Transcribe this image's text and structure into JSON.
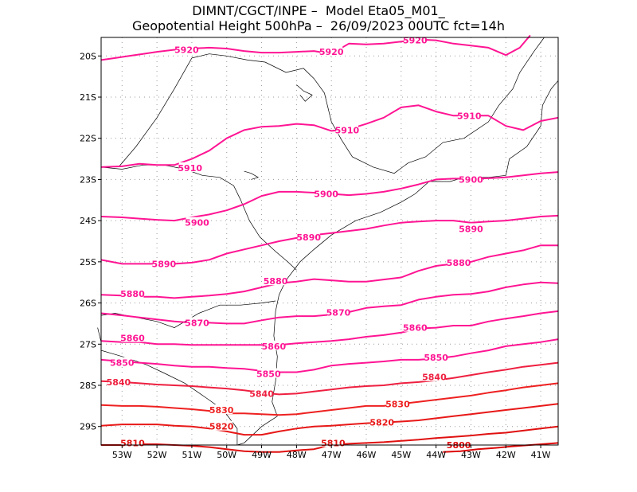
{
  "header": {
    "line1": "DIMNT/CGCT/INPE –  Model Eta05_M01_",
    "line2": "Geopotential Height 500hPa –  26/09/2023 00UTC fct=14h"
  },
  "map": {
    "lon_range": [
      -53.6,
      -40.5
    ],
    "lat_range": [
      -29.45,
      -19.55
    ],
    "lon_ticks": [
      -53,
      -52,
      -51,
      -50,
      -49,
      -48,
      -47,
      -46,
      -45,
      -44,
      -43,
      -42,
      -41
    ],
    "lon_tick_labels": [
      "53W",
      "52W",
      "51W",
      "50W",
      "49W",
      "48W",
      "47W",
      "46W",
      "45W",
      "44W",
      "43W",
      "42W",
      "41W"
    ],
    "lat_ticks": [
      -20,
      -21,
      -22,
      -23,
      -24,
      -25,
      -26,
      -27,
      -28,
      -29
    ],
    "lat_tick_labels": [
      "20S",
      "21S",
      "22S",
      "23S",
      "24S",
      "25S",
      "26S",
      "27S",
      "28S",
      "29S"
    ],
    "coastline_color": "#000000",
    "grid_color": "#9a9a9a"
  },
  "contours": [
    {
      "value": "5920",
      "color": "#ff1493",
      "lons": [
        -53.6,
        -53.2,
        -52.8,
        -52.4,
        -52,
        -51.5,
        -51,
        -50.5,
        -50,
        -49.5,
        -49,
        -48.5,
        -48,
        -47.5,
        -47,
        -46.5,
        -46,
        -45.5,
        -45,
        -44.5,
        -44,
        -43.5,
        -43,
        -42.5,
        -42,
        -41.6,
        -41.3
      ],
      "lats": [
        -20.1,
        -20.05,
        -20.0,
        -19.95,
        -19.9,
        -19.85,
        -19.82,
        -19.8,
        -19.82,
        -19.88,
        -19.92,
        -19.92,
        -19.9,
        -19.88,
        -19.95,
        -19.7,
        -19.72,
        -19.7,
        -19.65,
        -19.6,
        -19.62,
        -19.7,
        -19.75,
        -19.8,
        -19.98,
        -19.8,
        -19.5
      ],
      "labels": [
        {
          "text": "5920",
          "lon": -51.15,
          "lat": -19.85
        },
        {
          "text": "5920",
          "lon": -47.0,
          "lat": -19.9
        },
        {
          "text": "5920",
          "lon": -44.6,
          "lat": -19.62
        }
      ]
    },
    {
      "value": "5910",
      "color": "#ff1493",
      "lons": [
        -53.6,
        -53,
        -52.5,
        -52,
        -51.5,
        -51,
        -50.5,
        -50,
        -49.5,
        -49,
        -48.5,
        -48,
        -47.5,
        -47,
        -46.5,
        -46,
        -45.5,
        -45,
        -44.5,
        -44,
        -43.5,
        -43,
        -42.5,
        -42,
        -41.5,
        -41,
        -40.5
      ],
      "lats": [
        -22.7,
        -22.68,
        -22.62,
        -22.65,
        -22.65,
        -22.5,
        -22.3,
        -22.0,
        -21.8,
        -21.72,
        -21.7,
        -21.65,
        -21.68,
        -21.82,
        -21.78,
        -21.65,
        -21.5,
        -21.25,
        -21.2,
        -21.35,
        -21.45,
        -21.45,
        -21.45,
        -21.7,
        -21.8,
        -21.58,
        -21.5
      ],
      "labels": [
        {
          "text": "5910",
          "lon": -51.05,
          "lat": -22.72
        },
        {
          "text": "5910",
          "lon": -46.55,
          "lat": -21.8
        },
        {
          "text": "5910",
          "lon": -43.05,
          "lat": -21.45
        }
      ]
    },
    {
      "value": "5900",
      "color": "#ff1493",
      "lons": [
        -53.6,
        -53,
        -52.5,
        -52,
        -51.5,
        -51,
        -50.5,
        -50,
        -49.5,
        -49,
        -48.5,
        -48,
        -47.5,
        -47,
        -46.5,
        -46,
        -45.5,
        -45,
        -44.5,
        -44,
        -43.5,
        -43,
        -42.5,
        -42,
        -41.5,
        -41,
        -40.5
      ],
      "lats": [
        -23.9,
        -23.92,
        -23.95,
        -23.98,
        -24.0,
        -23.92,
        -23.85,
        -23.75,
        -23.6,
        -23.4,
        -23.3,
        -23.3,
        -23.32,
        -23.35,
        -23.38,
        -23.35,
        -23.3,
        -23.22,
        -23.12,
        -23.0,
        -22.98,
        -22.98,
        -22.97,
        -22.95,
        -22.9,
        -22.85,
        -22.82
      ],
      "labels": [
        {
          "text": "5900",
          "lon": -50.85,
          "lat": -24.05
        },
        {
          "text": "5900",
          "lon": -47.15,
          "lat": -23.35
        },
        {
          "text": "5900",
          "lon": -43.0,
          "lat": -23.0
        }
      ]
    },
    {
      "value": "5890",
      "color": "#ff1493",
      "lons": [
        -53.6,
        -53,
        -52.5,
        -52,
        -51.5,
        -51,
        -50.5,
        -50,
        -49.5,
        -49,
        -48.5,
        -48,
        -47.5,
        -47,
        -46.5,
        -46,
        -45.5,
        -45,
        -44.5,
        -44,
        -43.5,
        -43,
        -42.5,
        -42,
        -41.5,
        -41,
        -40.5
      ],
      "lats": [
        -24.95,
        -25.05,
        -25.05,
        -25.05,
        -25.05,
        -25.02,
        -24.95,
        -24.8,
        -24.7,
        -24.6,
        -24.5,
        -24.42,
        -24.35,
        -24.3,
        -24.25,
        -24.2,
        -24.12,
        -24.05,
        -24.02,
        -24.0,
        -24.0,
        -24.05,
        -24.02,
        -24.0,
        -23.95,
        -23.9,
        -23.88
      ],
      "labels": [
        {
          "text": "5890",
          "lon": -51.8,
          "lat": -25.05
        },
        {
          "text": "5890",
          "lon": -47.65,
          "lat": -24.4
        },
        {
          "text": "5890",
          "lon": -43.0,
          "lat": -24.2
        }
      ]
    },
    {
      "value": "5880",
      "color": "#ff1493",
      "lons": [
        -53.6,
        -53,
        -52.5,
        -52,
        -51.5,
        -51,
        -50.5,
        -50,
        -49.5,
        -49,
        -48.5,
        -48,
        -47.5,
        -47,
        -46.5,
        -46,
        -45.5,
        -45,
        -44.5,
        -44,
        -43.5,
        -43,
        -42.5,
        -42,
        -41.5,
        -41,
        -40.5
      ],
      "lats": [
        -25.8,
        -25.82,
        -25.85,
        -25.85,
        -25.88,
        -25.85,
        -25.82,
        -25.78,
        -25.72,
        -25.62,
        -25.52,
        -25.48,
        -25.42,
        -25.45,
        -25.48,
        -25.48,
        -25.43,
        -25.38,
        -25.22,
        -25.1,
        -25.05,
        -25.0,
        -24.88,
        -24.8,
        -24.72,
        -24.6,
        -24.6
      ],
      "labels": [
        {
          "text": "5880",
          "lon": -52.7,
          "lat": -25.78
        },
        {
          "text": "5880",
          "lon": -48.6,
          "lat": -25.47
        },
        {
          "text": "5880",
          "lon": -43.35,
          "lat": -25.02
        }
      ]
    },
    {
      "value": "5870",
      "color": "#ff1493",
      "lons": [
        -53.6,
        -53,
        -52.5,
        -52,
        -51.5,
        -51,
        -50.5,
        -50,
        -49.5,
        -49,
        -48.5,
        -48,
        -47.5,
        -47,
        -46.5,
        -46,
        -45.5,
        -45,
        -44.5,
        -44,
        -43.5,
        -43,
        -42.5,
        -42,
        -41.5,
        -41,
        -40.5
      ],
      "lats": [
        -26.25,
        -26.3,
        -26.35,
        -26.4,
        -26.45,
        -26.48,
        -26.48,
        -26.5,
        -26.5,
        -26.42,
        -26.35,
        -26.32,
        -26.32,
        -26.28,
        -26.22,
        -26.12,
        -26.08,
        -26.05,
        -25.92,
        -25.85,
        -25.8,
        -25.78,
        -25.72,
        -25.62,
        -25.55,
        -25.5,
        -25.52
      ],
      "labels": [
        {
          "text": "5870",
          "lon": -50.85,
          "lat": -26.48
        },
        {
          "text": "5870",
          "lon": -46.8,
          "lat": -26.23
        }
      ]
    },
    {
      "value": "5860",
      "color": "#ff1493",
      "lons": [
        -53.6,
        -53,
        -52.5,
        -52,
        -51.5,
        -51,
        -50.5,
        -50,
        -49.5,
        -49,
        -48.5,
        -48,
        -47.5,
        -47,
        -46.5,
        -46,
        -45.5,
        -45,
        -44.5,
        -44,
        -43.5,
        -43,
        -42.5,
        -42,
        -41.5,
        -41,
        -40.5
      ],
      "lats": [
        -26.92,
        -26.95,
        -26.95,
        -27.0,
        -27.0,
        -27.02,
        -27.02,
        -27.02,
        -27.02,
        -27.02,
        -27.02,
        -26.98,
        -26.95,
        -26.92,
        -26.88,
        -26.82,
        -26.78,
        -26.72,
        -26.62,
        -26.6,
        -26.55,
        -26.55,
        -26.45,
        -26.38,
        -26.32,
        -26.25,
        -26.2
      ],
      "labels": [
        {
          "text": "5860",
          "lon": -52.7,
          "lat": -26.85
        },
        {
          "text": "5860",
          "lon": -48.65,
          "lat": -27.05
        },
        {
          "text": "5860",
          "lon": -44.6,
          "lat": -26.6
        }
      ]
    },
    {
      "value": "5850",
      "color": "#ff1493",
      "lons": [
        -53.6,
        -53,
        -52.5,
        -52,
        -51.5,
        -51,
        -50.5,
        -50,
        -49.5,
        -49,
        -48.5,
        -48,
        -47.5,
        -47,
        -46.5,
        -46,
        -45.5,
        -45,
        -44.5,
        -44,
        -43.5,
        -43,
        -42.5,
        -42,
        -41.5,
        -41,
        -40.5
      ],
      "lats": [
        -27.38,
        -27.42,
        -27.45,
        -27.48,
        -27.52,
        -27.55,
        -27.55,
        -27.58,
        -27.6,
        -27.65,
        -27.68,
        -27.68,
        -27.62,
        -27.52,
        -27.48,
        -27.45,
        -27.42,
        -27.38,
        -27.38,
        -27.35,
        -27.3,
        -27.22,
        -27.15,
        -27.05,
        -27.0,
        -26.95,
        -26.88
      ],
      "labels": [
        {
          "text": "5850",
          "lon": -53.0,
          "lat": -27.45
        },
        {
          "text": "5850",
          "lon": -48.8,
          "lat": -27.72
        },
        {
          "text": "5850",
          "lon": -44.0,
          "lat": -27.32
        }
      ]
    },
    {
      "value": "5840",
      "color": "#ee2040",
      "lons": [
        -53.6,
        -53,
        -52.5,
        -52,
        -51.5,
        -51,
        -50.5,
        -50,
        -49.5,
        -49,
        -48.5,
        -48,
        -47.5,
        -47,
        -46.5,
        -46,
        -45.5,
        -45,
        -44.5,
        -44,
        -43.5,
        -43,
        -42.5,
        -42,
        -41.5,
        -41,
        -40.5
      ],
      "lats": [
        -27.9,
        -27.92,
        -27.95,
        -27.98,
        -28.0,
        -28.02,
        -28.05,
        -28.08,
        -28.12,
        -28.18,
        -28.22,
        -28.2,
        -28.15,
        -28.1,
        -28.05,
        -28.02,
        -28.0,
        -27.95,
        -27.92,
        -27.88,
        -27.82,
        -27.75,
        -27.68,
        -27.62,
        -27.55,
        -27.5,
        -27.45
      ],
      "labels": [
        {
          "text": "5840",
          "lon": -53.1,
          "lat": -27.92
        },
        {
          "text": "5840",
          "lon": -49.0,
          "lat": -28.2
        },
        {
          "text": "5840",
          "lon": -44.05,
          "lat": -27.8
        }
      ]
    },
    {
      "value": "5830",
      "color": "#ee2020",
      "lons": [
        -53.6,
        -53,
        -52.5,
        -52,
        -51.5,
        -51,
        -50.5,
        -50,
        -49.5,
        -49,
        -48.5,
        -48,
        -47.5,
        -47,
        -46.5,
        -46,
        -45.5,
        -45,
        -44.5,
        -44,
        -43.5,
        -43,
        -42.5,
        -42,
        -41.5,
        -41,
        -40.5
      ],
      "lats": [
        -28.48,
        -28.5,
        -28.5,
        -28.52,
        -28.55,
        -28.58,
        -28.62,
        -28.68,
        -28.68,
        -28.7,
        -28.72,
        -28.7,
        -28.65,
        -28.6,
        -28.55,
        -28.5,
        -28.5,
        -28.45,
        -28.4,
        -28.35,
        -28.3,
        -28.25,
        -28.18,
        -28.12,
        -28.05,
        -28.0,
        -27.95
      ],
      "labels": [
        {
          "text": "5830",
          "lon": -50.15,
          "lat": -28.6
        },
        {
          "text": "5830",
          "lon": -45.1,
          "lat": -28.45
        }
      ]
    },
    {
      "value": "5820",
      "color": "#e81818",
      "lons": [
        -53.6,
        -53,
        -52.5,
        -52,
        -51.5,
        -51,
        -50.5,
        -50,
        -49.5,
        -49,
        -48.5,
        -48,
        -47.5,
        -47,
        -46.5,
        -46,
        -45.5,
        -45,
        -44.5,
        -44,
        -43.5,
        -43,
        -42.5,
        -42,
        -41.5,
        -41,
        -40.5
      ],
      "lats": [
        -28.98,
        -28.95,
        -28.95,
        -28.95,
        -28.98,
        -29.0,
        -29.05,
        -29.12,
        -29.2,
        -29.2,
        -29.12,
        -29.05,
        -29.0,
        -28.98,
        -28.95,
        -28.92,
        -28.9,
        -28.88,
        -28.85,
        -28.8,
        -28.75,
        -28.7,
        -28.65,
        -28.6,
        -28.55,
        -28.5,
        -28.45
      ],
      "labels": [
        {
          "text": "5820",
          "lon": -50.15,
          "lat": -29.0
        },
        {
          "text": "5820",
          "lon": -45.55,
          "lat": -28.9
        }
      ]
    },
    {
      "value": "5810",
      "color": "#e01010",
      "lons": [
        -53.6,
        -53,
        -52.5,
        -52,
        -51.5,
        -51,
        -50.5,
        -50,
        -49.5,
        -49,
        -48.5,
        -48,
        -47.5,
        -47,
        -46.5,
        -46,
        -45.5,
        -45,
        -44.5,
        -44,
        -43.5,
        -43,
        -42.5,
        -42,
        -41.5,
        -41,
        -40.5
      ],
      "lats": [
        -29.45,
        -29.45,
        -29.43,
        -29.43,
        -29.45,
        -29.47,
        -29.5,
        -29.55,
        -29.6,
        -29.62,
        -29.62,
        -29.58,
        -29.55,
        -29.45,
        -29.42,
        -29.4,
        -29.38,
        -29.35,
        -29.32,
        -29.28,
        -29.25,
        -29.22,
        -29.18,
        -29.15,
        -29.1,
        -29.05,
        -29.0
      ],
      "labels": [
        {
          "text": "5810",
          "lon": -52.7,
          "lat": -29.4
        },
        {
          "text": "5810",
          "lon": -46.95,
          "lat": -29.4
        }
      ]
    },
    {
      "value": "5800",
      "color": "#dd0808",
      "lons": [
        -43.8,
        -43.3,
        -42.8,
        -42.3,
        -41.8,
        -41.3,
        -40.8,
        -40.5
      ],
      "lats": [
        -29.62,
        -29.6,
        -29.55,
        -29.52,
        -29.48,
        -29.45,
        -29.42,
        -29.4
      ],
      "labels": [
        {
          "text": "5800",
          "lon": -43.35,
          "lat": -29.45
        }
      ]
    }
  ]
}
